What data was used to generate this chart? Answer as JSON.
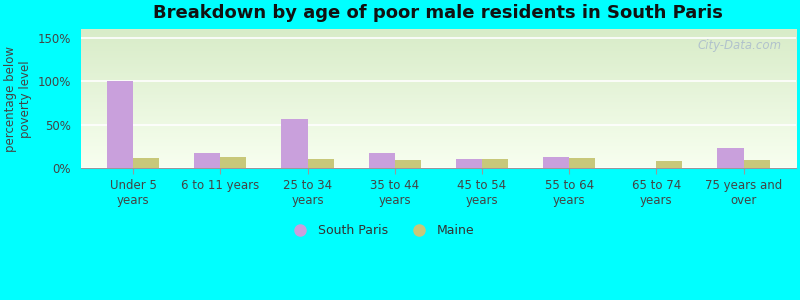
{
  "title": "Breakdown by age of poor male residents in South Paris",
  "categories": [
    "Under 5\nyears",
    "6 to 11 years",
    "25 to 34\nyears",
    "35 to 44\nyears",
    "45 to 54\nyears",
    "55 to 64\nyears",
    "65 to 74\nyears",
    "75 years and\nover"
  ],
  "south_paris": [
    100,
    17,
    57,
    17,
    10,
    13,
    0,
    23
  ],
  "maine": [
    12,
    13,
    10,
    9,
    11,
    12,
    8,
    9
  ],
  "south_paris_color": "#c9a0dc",
  "maine_color": "#c8c87a",
  "ylabel": "percentage below\npoverty level",
  "ylim": [
    0,
    160
  ],
  "yticks": [
    0,
    50,
    100,
    150
  ],
  "ytick_labels": [
    "0%",
    "50%",
    "100%",
    "150%"
  ],
  "grad_top": "#d8ecc8",
  "grad_bottom": "#f0f8e8",
  "outer_bg": "#00ffff",
  "watermark": "City-Data.com",
  "bar_width": 0.3,
  "legend_south_paris": "South Paris",
  "legend_maine": "Maine",
  "title_fontsize": 13,
  "tick_fontsize": 8.5,
  "ylabel_fontsize": 8.5
}
